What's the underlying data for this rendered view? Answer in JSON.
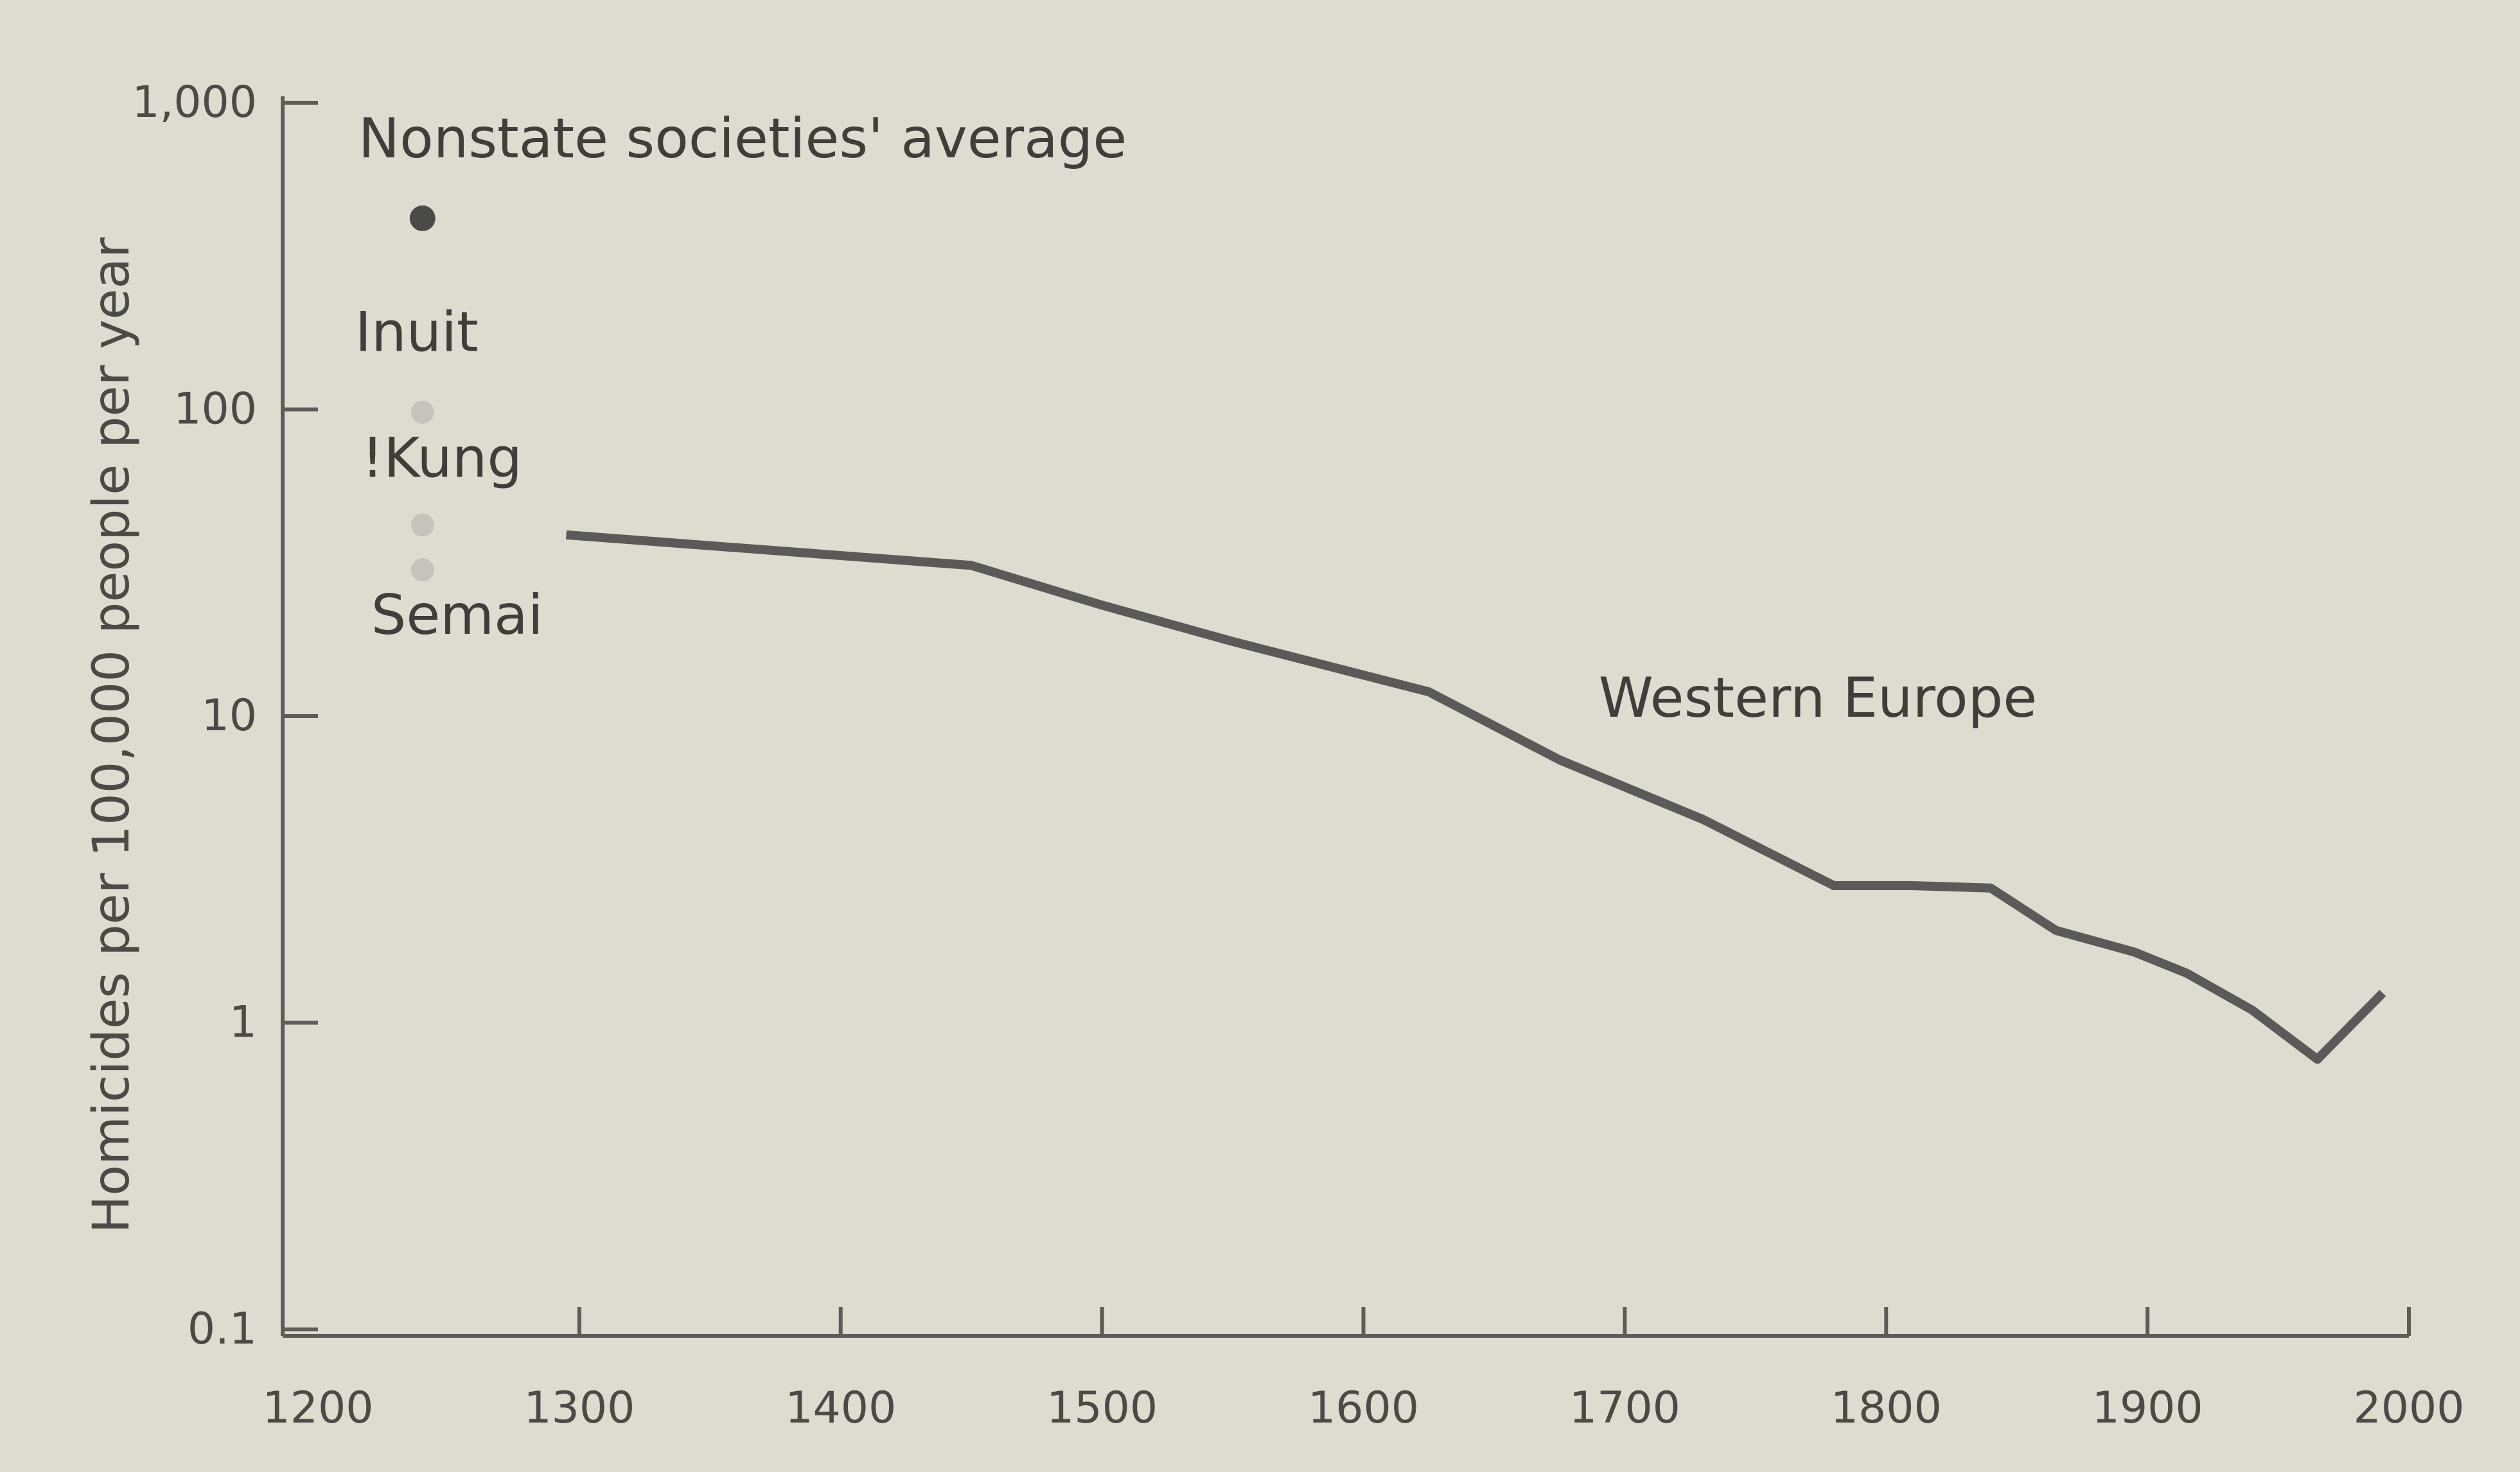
{
  "chart_data": {
    "type": "line",
    "title": "",
    "xlabel": "",
    "ylabel": "Homicides per 100,000 people per year",
    "y_scale": "log",
    "xlim": [
      1200,
      2000
    ],
    "ylim": [
      0.1,
      1000
    ],
    "x_ticks": [
      1200,
      1300,
      1400,
      1500,
      1600,
      1700,
      1800,
      1900,
      2000
    ],
    "x_tick_labels": [
      "1200",
      "1300",
      "1400",
      "1500",
      "1600",
      "1700",
      "1800",
      "1900",
      "2000"
    ],
    "y_ticks": [
      0.1,
      1,
      10,
      100,
      1000
    ],
    "y_tick_labels": [
      "0.1",
      "1",
      "10",
      "100",
      "1,000"
    ],
    "grid": false,
    "series": [
      {
        "name": "Western Europe",
        "color": "#5a5a58",
        "x": [
          1295,
          1450,
          1500,
          1550,
          1625,
          1675,
          1730,
          1780,
          1810,
          1840,
          1865,
          1895,
          1915,
          1940,
          1965,
          1990
        ],
        "y": [
          39,
          31,
          23,
          17.5,
          12,
          7.2,
          4.6,
          2.8,
          2.8,
          2.75,
          2.0,
          1.7,
          1.45,
          1.1,
          0.76,
          1.25
        ]
      }
    ],
    "points": [
      {
        "label": "Nonstate societies' average",
        "x": 1240,
        "y": 420,
        "color": "#4a4a48"
      },
      {
        "label": "Inuit",
        "x": 1240,
        "y": 98,
        "color": "#c4c4bc"
      },
      {
        "label": "!Kung",
        "x": 1240,
        "y": 42,
        "color": "#c4c4bc"
      },
      {
        "label": "Semai",
        "x": 1240,
        "y": 30,
        "color": "#c4c4bc"
      }
    ]
  }
}
